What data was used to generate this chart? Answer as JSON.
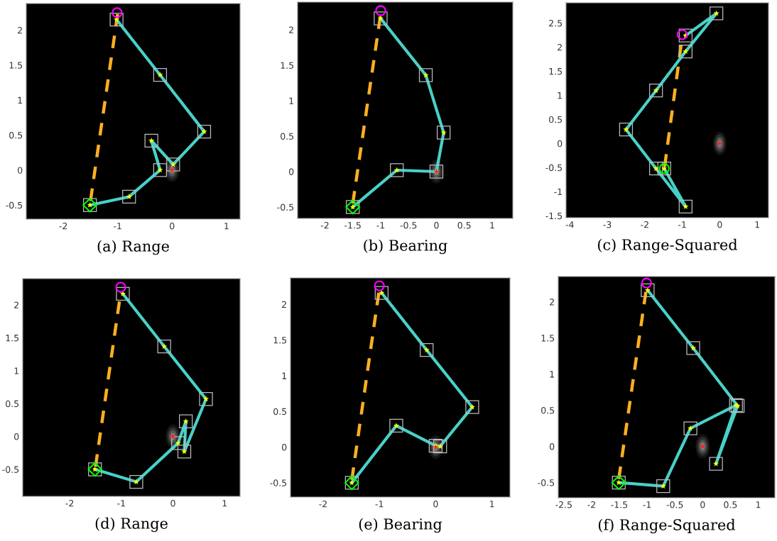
{
  "chart_data": [
    {
      "type": "line",
      "title": "(a) Range",
      "xlim": [
        -2.68,
        1.25
      ],
      "ylim": [
        -0.7,
        2.38
      ],
      "xticks": [
        -2,
        -1,
        0,
        1
      ],
      "yticks": [
        -0.5,
        0,
        0.5,
        1,
        1.5,
        2
      ],
      "series": [
        {
          "type": "line",
          "color": "#ffb020",
          "line_style": "dashed",
          "marker": "none",
          "x": [
            -1.5,
            -1.0
          ],
          "values": [
            -0.44,
            2.23
          ]
        },
        {
          "type": "line",
          "color": "#48d1c8",
          "line_style": "solid",
          "marker": "square",
          "x": [
            -1.51,
            -0.79,
            -0.22,
            -0.38,
            0.02,
            0.59,
            -0.22,
            -1.02
          ],
          "values": [
            -0.5,
            -0.38,
            0.0,
            0.42,
            0.08,
            0.55,
            1.36,
            2.15
          ]
        },
        {
          "type": "scatter",
          "color": "#ffff00",
          "marker": "star",
          "x": [
            -1.51,
            -0.79,
            -0.22,
            -0.38,
            0.02,
            0.59,
            -0.22,
            -1.02
          ],
          "values": [
            -0.5,
            -0.38,
            0.0,
            0.42,
            0.08,
            0.55,
            1.36,
            2.15
          ]
        },
        {
          "type": "scatter",
          "color": "#00ff00",
          "marker": "diamond",
          "x": [
            -1.51
          ],
          "values": [
            -0.5
          ]
        },
        {
          "type": "scatter",
          "color": "#ff00ff",
          "marker": "circle",
          "x": [
            -1.01
          ],
          "values": [
            2.25
          ]
        },
        {
          "type": "scatter",
          "color": "#ff2020",
          "marker": "star",
          "x": [
            0
          ],
          "values": [
            0
          ]
        }
      ]
    },
    {
      "type": "line",
      "title": "(b) Bearing",
      "xlim": [
        -2.49,
        1.37
      ],
      "ylim": [
        -0.66,
        2.39
      ],
      "xticks": [
        -2,
        -1.5,
        -1,
        -0.5,
        0,
        0.5,
        1
      ],
      "yticks": [
        -0.5,
        0,
        0.5,
        1,
        1.5,
        2
      ],
      "series": [
        {
          "type": "line",
          "color": "#ffb020",
          "line_style": "dashed",
          "marker": "none",
          "x": [
            -1.5,
            -1.0
          ],
          "values": [
            -0.45,
            2.22
          ]
        },
        {
          "type": "line",
          "color": "#48d1c8",
          "line_style": "solid",
          "marker": "square",
          "x": [
            -1.5,
            -0.71,
            0.0,
            0.13,
            -0.19,
            -1.0
          ],
          "values": [
            -0.5,
            0.02,
            0.0,
            0.55,
            1.36,
            2.16
          ]
        },
        {
          "type": "scatter",
          "color": "#ffff00",
          "marker": "star",
          "x": [
            -1.5,
            -0.71,
            0.0,
            0.13,
            -0.19,
            -1.0
          ],
          "values": [
            -0.5,
            0.02,
            0.0,
            0.55,
            1.36,
            2.16
          ]
        },
        {
          "type": "scatter",
          "color": "#00ff00",
          "marker": "diamond",
          "x": [
            -1.5
          ],
          "values": [
            -0.5
          ]
        },
        {
          "type": "scatter",
          "color": "#ff00ff",
          "marker": "circle",
          "x": [
            -1.0
          ],
          "values": [
            2.27
          ]
        },
        {
          "type": "scatter",
          "color": "#ff2020",
          "marker": "star",
          "x": [
            0
          ],
          "values": [
            0
          ]
        }
      ]
    },
    {
      "type": "line",
      "title": "(c) Range-Squared",
      "xlim": [
        -4.1,
        1.3
      ],
      "ylim": [
        -1.54,
        2.92
      ],
      "xticks": [
        -4,
        -3,
        -2,
        -1,
        0,
        1
      ],
      "yticks": [
        -1.5,
        -1,
        -0.5,
        0,
        0.5,
        1,
        1.5,
        2,
        2.5
      ],
      "series": [
        {
          "type": "line",
          "color": "#ffb020",
          "line_style": "dashed",
          "marker": "none",
          "x": [
            -1.47,
            -1.0
          ],
          "values": [
            -0.48,
            2.22
          ]
        },
        {
          "type": "line",
          "color": "#48d1c8",
          "line_style": "solid",
          "marker": "square",
          "x": [
            -1.48,
            -0.91,
            -1.7,
            -2.5,
            -1.7,
            -0.91,
            -0.09,
            -0.91
          ],
          "values": [
            -0.52,
            -1.31,
            -0.52,
            0.29,
            1.1,
            1.91,
            2.7,
            2.24
          ]
        },
        {
          "type": "scatter",
          "color": "#ffff00",
          "marker": "star",
          "x": [
            -1.48,
            -0.91,
            -1.7,
            -2.5,
            -1.7,
            -0.91,
            -0.09,
            -0.91
          ],
          "values": [
            -0.52,
            -1.31,
            -0.52,
            0.29,
            1.1,
            1.91,
            2.7,
            2.24
          ]
        },
        {
          "type": "scatter",
          "color": "#00ff00",
          "marker": "circle",
          "x": [
            -1.48
          ],
          "values": [
            -0.52
          ]
        },
        {
          "type": "scatter",
          "color": "#ff00ff",
          "marker": "circle",
          "x": [
            -1.0
          ],
          "values": [
            2.26
          ]
        },
        {
          "type": "scatter",
          "color": "#ff2020",
          "marker": "star",
          "x": [
            0
          ],
          "values": [
            0
          ]
        }
      ]
    },
    {
      "type": "line",
      "title": "(d) Range",
      "xlim": [
        -2.91,
        1.3
      ],
      "ylim": [
        -0.91,
        2.4
      ],
      "xticks": [
        -2,
        -1,
        0,
        1
      ],
      "yticks": [
        -0.5,
        0,
        0.5,
        1,
        1.5,
        2
      ],
      "series": [
        {
          "type": "line",
          "color": "#ffb020",
          "line_style": "dashed",
          "marker": "none",
          "x": [
            -1.5,
            -1.01
          ],
          "values": [
            -0.46,
            2.2
          ]
        },
        {
          "type": "line",
          "color": "#48d1c8",
          "line_style": "solid",
          "marker": "square",
          "x": [
            -1.51,
            -0.71,
            0.1,
            0.25,
            0.22,
            0.64,
            -0.17,
            -0.97
          ],
          "values": [
            -0.5,
            -0.69,
            -0.1,
            0.23,
            -0.23,
            0.57,
            1.37,
            2.17
          ]
        },
        {
          "type": "scatter",
          "color": "#ffff00",
          "marker": "star",
          "x": [
            -1.51,
            -0.71,
            0.1,
            0.25,
            0.22,
            0.64,
            -0.17,
            -0.97
          ],
          "values": [
            -0.5,
            -0.69,
            -0.1,
            0.23,
            -0.23,
            0.57,
            1.37,
            2.17
          ]
        },
        {
          "type": "scatter",
          "color": "#00ff00",
          "marker": "diamond",
          "x": [
            -1.51
          ],
          "values": [
            -0.5
          ]
        },
        {
          "type": "scatter",
          "color": "#ff00ff",
          "marker": "circle",
          "x": [
            -1.01
          ],
          "values": [
            2.27
          ]
        },
        {
          "type": "scatter",
          "color": "#ff2020",
          "marker": "star",
          "x": [
            0
          ],
          "values": [
            0
          ]
        }
      ]
    },
    {
      "type": "line",
      "title": "(e) Bearing",
      "xlim": [
        -2.58,
        1.32
      ],
      "ylim": [
        -0.7,
        2.37
      ],
      "xticks": [
        -2,
        -1,
        0,
        1
      ],
      "yticks": [
        -0.5,
        0,
        0.5,
        1,
        1.5,
        2
      ],
      "series": [
        {
          "type": "line",
          "color": "#ffb020",
          "line_style": "dashed",
          "marker": "none",
          "x": [
            -1.49,
            -1.0
          ],
          "values": [
            -0.46,
            2.22
          ]
        },
        {
          "type": "line",
          "color": "#48d1c8",
          "line_style": "solid",
          "marker": "square",
          "x": [
            -1.49,
            -0.7,
            0.0,
            0.08,
            0.65,
            -0.16,
            -0.96
          ],
          "values": [
            -0.5,
            0.3,
            0.02,
            0.01,
            0.56,
            1.36,
            2.16
          ]
        },
        {
          "type": "scatter",
          "color": "#ffff00",
          "marker": "star",
          "x": [
            -1.49,
            -0.7,
            0.0,
            0.08,
            0.65,
            -0.16,
            -0.96
          ],
          "values": [
            -0.5,
            0.3,
            0.02,
            0.01,
            0.56,
            1.36,
            2.16
          ]
        },
        {
          "type": "scatter",
          "color": "#00ff00",
          "marker": "diamond",
          "x": [
            -1.49
          ],
          "values": [
            -0.5
          ]
        },
        {
          "type": "scatter",
          "color": "#ff00ff",
          "marker": "circle",
          "x": [
            -1.0
          ],
          "values": [
            2.26
          ]
        },
        {
          "type": "scatter",
          "color": "#ff2020",
          "marker": "star",
          "x": [
            0
          ],
          "values": [
            0
          ]
        }
      ]
    },
    {
      "type": "line",
      "title": "(f) Range-Squared",
      "xlim": [
        -2.6,
        1.3
      ],
      "ylim": [
        -0.71,
        2.35
      ],
      "xticks": [
        -2.5,
        -2,
        -1.5,
        -1,
        -0.5,
        0,
        0.5,
        1
      ],
      "yticks": [
        -0.5,
        0,
        0.5,
        1,
        1.5,
        2
      ],
      "series": [
        {
          "type": "line",
          "color": "#ffb020",
          "line_style": "dashed",
          "marker": "none",
          "x": [
            -1.51,
            -1.02
          ],
          "values": [
            -0.45,
            2.15
          ]
        },
        {
          "type": "line",
          "color": "#48d1c8",
          "line_style": "solid",
          "marker": "square",
          "x": [
            -1.51,
            -0.71,
            -0.22,
            0.6,
            0.24,
            0.63,
            -0.17,
            -0.99
          ],
          "values": [
            -0.5,
            -0.55,
            0.25,
            0.57,
            -0.24,
            0.56,
            1.36,
            2.16
          ]
        },
        {
          "type": "scatter",
          "color": "#ffff00",
          "marker": "star",
          "x": [
            -1.51,
            -0.71,
            -0.22,
            0.6,
            0.24,
            0.63,
            -0.17,
            -0.99
          ],
          "values": [
            -0.5,
            -0.55,
            0.25,
            0.57,
            -0.24,
            0.56,
            1.36,
            2.16
          ]
        },
        {
          "type": "scatter",
          "color": "#00ff00",
          "marker": "diamond",
          "x": [
            -1.51
          ],
          "values": [
            -0.5
          ]
        },
        {
          "type": "scatter",
          "color": "#ff00ff",
          "marker": "circle",
          "x": [
            -1.01
          ],
          "values": [
            2.26
          ]
        },
        {
          "type": "scatter",
          "color": "#ff2020",
          "marker": "star",
          "x": [
            0
          ],
          "values": [
            0
          ]
        }
      ]
    }
  ]
}
